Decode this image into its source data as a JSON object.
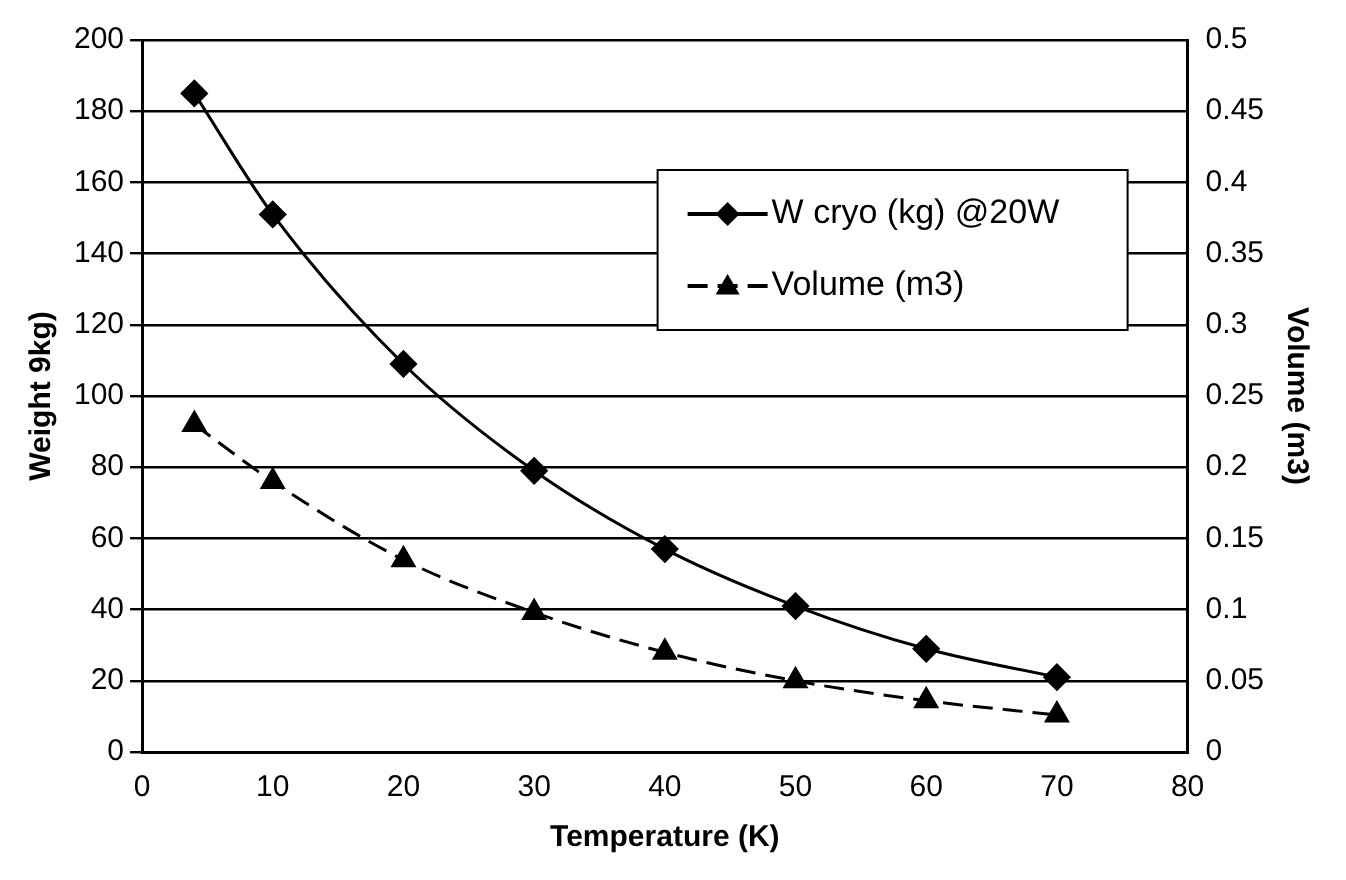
{
  "chart_data": {
    "type": "line",
    "xlabel": "Temperature (K)",
    "ylabel": "Weight 9kg)",
    "y2label": "Volume (m3)",
    "xlim": [
      0,
      80
    ],
    "xticks": [
      0,
      10,
      20,
      30,
      40,
      50,
      60,
      70,
      80
    ],
    "ylim": [
      0,
      200
    ],
    "yticks": [
      0,
      20,
      40,
      60,
      80,
      100,
      120,
      140,
      160,
      180,
      200
    ],
    "y2lim": [
      0,
      0.5
    ],
    "y2ticks": [
      0,
      0.05,
      0.1,
      0.15,
      0.2,
      0.25,
      0.3,
      0.35,
      0.4,
      0.45,
      0.5
    ],
    "grid": "y",
    "legend": "top right",
    "series": [
      {
        "name": "W cryo (kg) @20W",
        "color": "#000000",
        "marker": "diamond",
        "line_style": "solid",
        "x": [
          4,
          10,
          20,
          30,
          40,
          50,
          60,
          70
        ],
        "values": [
          185,
          151,
          109,
          79,
          57,
          41,
          29,
          21
        ]
      },
      {
        "name": "Volume (m3)",
        "color": "#000000",
        "marker": "triangle",
        "line_style": "dashed",
        "axis": "y2",
        "x": [
          4,
          10,
          20,
          30,
          40,
          50,
          60,
          70
        ],
        "values": [
          0.23,
          0.19,
          0.135,
          0.098,
          0.07,
          0.05,
          0.036,
          0.026
        ]
      }
    ]
  }
}
